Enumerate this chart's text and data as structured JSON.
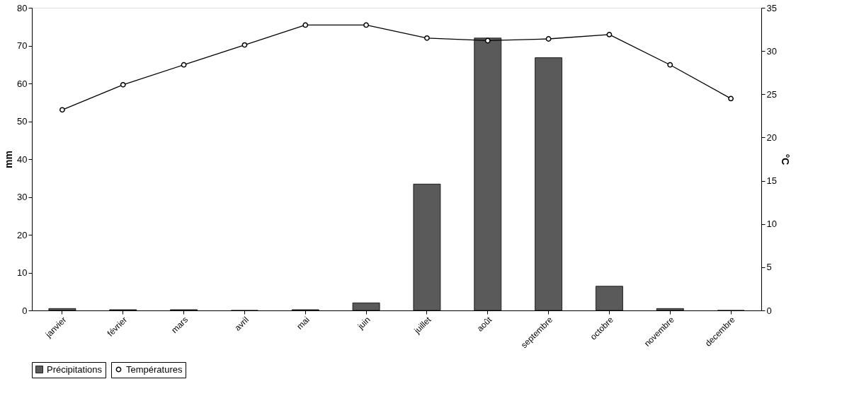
{
  "chart_data": {
    "type": "bar",
    "categories": [
      "janvier",
      "février",
      "mars",
      "avril",
      "mai",
      "juin",
      "juillet",
      "août",
      "septembre",
      "octobre",
      "novembre",
      "decembre"
    ],
    "series": [
      {
        "name": "Précipitations",
        "color": "#5a5a5a",
        "values": [
          0.5,
          0.2,
          0.2,
          0,
          0.2,
          2,
          33.4,
          72,
          66.8,
          6.4,
          0.5,
          0
        ]
      },
      {
        "name": "Températures",
        "type": "line",
        "axis": "y2",
        "color": "#000000",
        "marker": "circle",
        "values": [
          23.2,
          26.1,
          28.4,
          30.7,
          33.0,
          33.0,
          31.5,
          31.2,
          31.4,
          31.9,
          28.4,
          24.5
        ]
      }
    ],
    "ylabel": "mm",
    "y2label": "°C",
    "ylim": [
      0,
      80
    ],
    "yticks": [
      0,
      10,
      20,
      30,
      40,
      50,
      60,
      70,
      80
    ],
    "y2lim": [
      0,
      35
    ],
    "y2ticks": [
      0,
      5,
      10,
      15,
      20,
      25,
      30,
      35
    ],
    "legend": "bottom",
    "grid": false
  }
}
